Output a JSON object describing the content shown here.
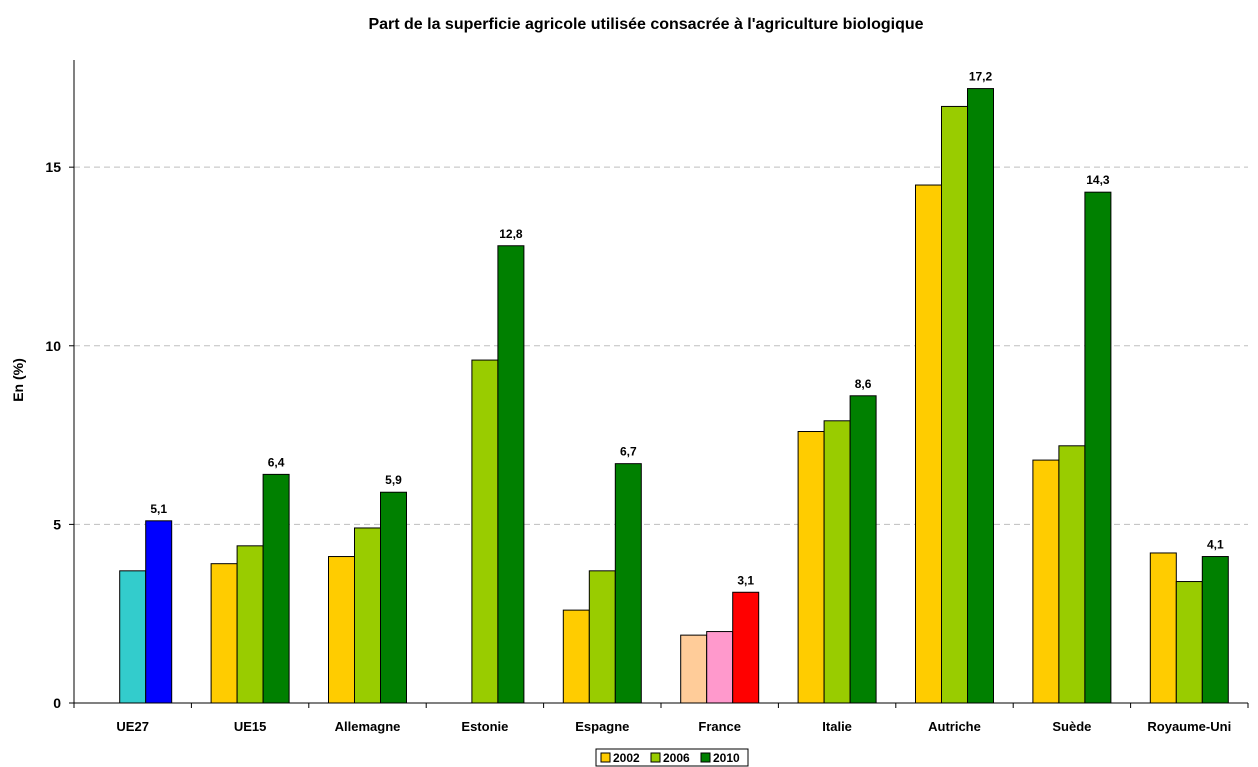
{
  "chart_data": {
    "type": "bar",
    "title": "Part de la superficie agricole utilisée consacrée à l'agriculture biologique",
    "ylabel": "En (%)",
    "xlabel": "",
    "ylim": [
      0,
      18
    ],
    "yticks": [
      0,
      5,
      10,
      15
    ],
    "grid": true,
    "legend_position": "bottom",
    "categories": [
      "UE27",
      "UE15",
      "Allemagne",
      "Estonie",
      "Espagne",
      "France",
      "Italie",
      "Autriche",
      "Suède",
      "Royaume-Uni"
    ],
    "series": [
      {
        "name": "2002",
        "color": "#FFCC00",
        "values": [
          null,
          3.9,
          4.1,
          null,
          2.6,
          1.9,
          7.6,
          14.5,
          6.8,
          4.2
        ]
      },
      {
        "name": "2006",
        "color": "#99CC00",
        "values": [
          3.7,
          4.4,
          4.9,
          9.6,
          3.7,
          2.0,
          7.9,
          16.7,
          7.2,
          3.4
        ]
      },
      {
        "name": "2010",
        "color": "#008000",
        "values": [
          5.1,
          6.4,
          5.9,
          12.8,
          6.7,
          3.1,
          8.6,
          17.2,
          14.3,
          4.1
        ]
      }
    ],
    "bar_color_overrides": {
      "UE27": {
        "2006": "#33CCCC",
        "2010": "#0000FF"
      },
      "France": {
        "2002": "#FFCC99",
        "2006": "#FF99CC",
        "2010": "#FF0000"
      }
    },
    "data_labels": [
      "5,1",
      "6,4",
      "5,9",
      "12,8",
      "6,7",
      "3,1",
      "8,6",
      "17,2",
      "14,3",
      "4,1"
    ],
    "ytick_labels": [
      "0",
      "5",
      "10",
      "15"
    ]
  }
}
